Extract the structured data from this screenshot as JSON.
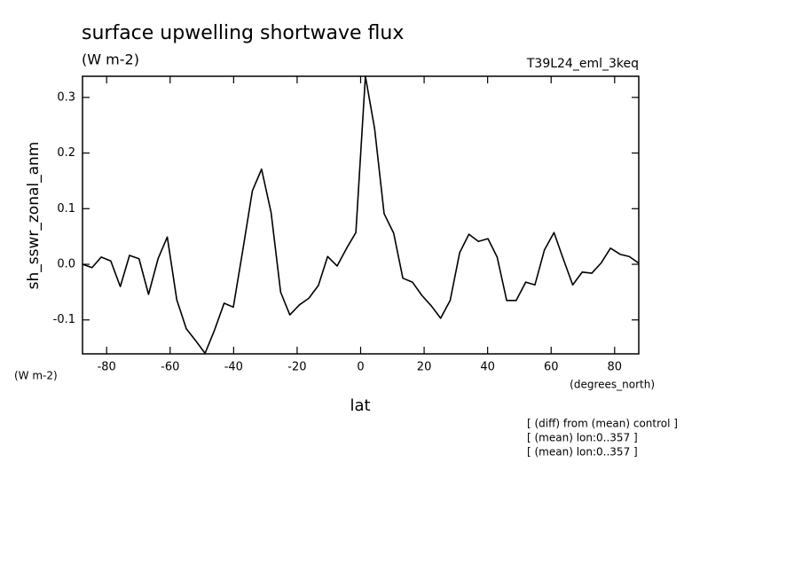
{
  "chart_data": {
    "type": "line",
    "title": "surface upwelling shortwave flux",
    "subtitle": "(W m-2)",
    "experiment": "T39L24_eml_3keq",
    "y_label": "sh_sswr_zonal_anm",
    "y_units": "(W m-2)",
    "x_units": "(degrees_north)",
    "x_label": "lat",
    "notes": [
      "[ (diff) from (mean) control ]",
      "[ (mean) lon:0..357 ]",
      "[ (mean) lon:0..357 ]"
    ],
    "x": [
      -87.6,
      -84.6,
      -81.7,
      -78.7,
      -75.7,
      -72.8,
      -69.8,
      -66.8,
      -63.8,
      -60.9,
      -57.9,
      -54.9,
      -52.0,
      -49.0,
      -46.0,
      -43.0,
      -40.1,
      -37.1,
      -34.1,
      -31.2,
      -28.2,
      -25.2,
      -22.3,
      -19.3,
      -16.3,
      -13.3,
      -10.4,
      -7.4,
      -4.4,
      -1.5,
      1.5,
      4.4,
      7.4,
      10.4,
      13.3,
      16.3,
      19.3,
      22.3,
      25.2,
      28.2,
      31.2,
      34.1,
      37.1,
      40.1,
      43.0,
      46.0,
      49.0,
      52.0,
      54.9,
      57.9,
      60.9,
      63.8,
      66.8,
      69.8,
      72.8,
      75.7,
      78.7,
      81.7,
      84.6,
      87.6
    ],
    "series": [
      {
        "name": "sh_sswr_zonal_anm",
        "color": "#000000",
        "values": [
          0.0,
          -0.006,
          0.013,
          0.006,
          -0.04,
          0.016,
          0.01,
          -0.054,
          0.01,
          0.049,
          -0.064,
          -0.116,
          -0.137,
          -0.16,
          -0.118,
          -0.07,
          -0.077,
          0.026,
          0.132,
          0.171,
          0.093,
          -0.05,
          -0.091,
          -0.073,
          -0.061,
          -0.038,
          0.014,
          -0.003,
          0.029,
          0.057,
          0.338,
          0.244,
          0.091,
          0.056,
          -0.025,
          -0.032,
          -0.056,
          -0.075,
          -0.097,
          -0.065,
          0.021,
          0.054,
          0.041,
          0.046,
          0.013,
          -0.065,
          -0.065,
          -0.032,
          -0.037,
          0.026,
          0.057,
          0.01,
          -0.037,
          -0.014,
          -0.016,
          0.002,
          0.029,
          0.018,
          0.014,
          0.002
        ]
      }
    ],
    "xlim": [
      -87.6,
      87.6
    ],
    "ylim": [
      -0.161,
      0.338
    ],
    "xticks": [
      -80,
      -60,
      -40,
      -20,
      0,
      20,
      40,
      60,
      80
    ],
    "yticks": [
      -0.1,
      {
        "value": 0,
        "label": "0.0"
      },
      0.1,
      0.2,
      0.3
    ]
  }
}
